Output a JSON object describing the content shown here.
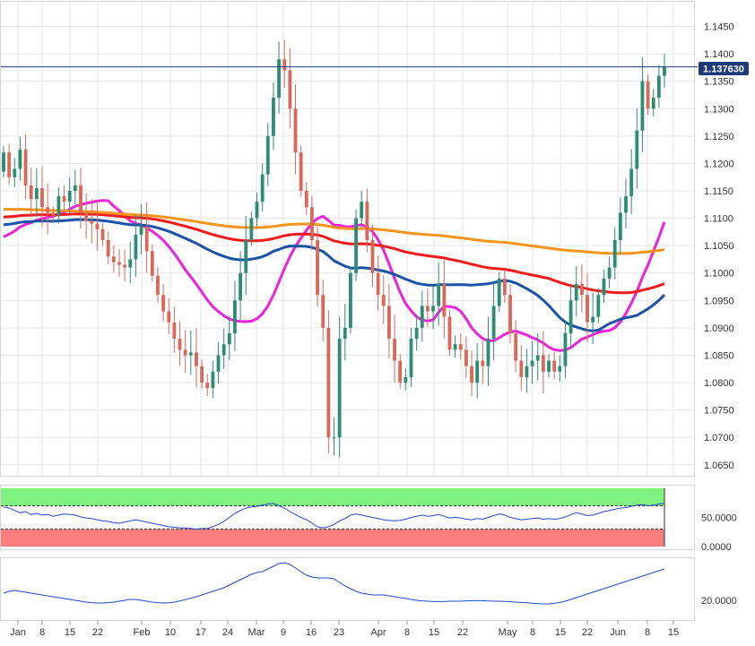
{
  "colors": {
    "up": "#2e8b74",
    "down": "#d9685a",
    "sma_fast": "#ee22dd",
    "sma_mid": "#1a52a6",
    "sma_slow": "#ee1c1c",
    "sma_long": "#f7941d",
    "price_line": "#1f3a7a",
    "overbought": "#7ff27f",
    "oversold": "#fa7d7d",
    "rsi_line": "#2147c9",
    "adx_line": "#2147c9",
    "grid": "#e6e6e6"
  },
  "last_price_label": "1.137630",
  "chart_data": [
    {
      "type": "candlestick",
      "x_labels": [
        "Jan",
        "8",
        "15",
        "22",
        "Feb",
        "10",
        "17",
        "24",
        "Mar",
        "9",
        "16",
        "23",
        "Apr",
        "8",
        "15",
        "22",
        "May",
        "8",
        "15",
        "22",
        "Jun",
        "8",
        "15"
      ],
      "y_ticks": [
        "1.0650",
        "1.0700",
        "1.0750",
        "1.0800",
        "1.0850",
        "1.0900",
        "1.0950",
        "1.1000",
        "1.1050",
        "1.1100",
        "1.1150",
        "1.1200",
        "1.1250",
        "1.1300",
        "1.1350",
        "1.1400",
        "1.1450"
      ],
      "ylim": [
        1.063,
        1.1495
      ],
      "last_price": 1.13763,
      "closes": [
        1.122,
        1.1175,
        1.119,
        1.1225,
        1.116,
        1.1135,
        1.1155,
        1.112,
        1.111,
        1.1105,
        1.114,
        1.113,
        1.115,
        1.116,
        1.111,
        1.1095,
        1.109,
        1.108,
        1.106,
        1.103,
        1.102,
        1.1015,
        1.101,
        1.1025,
        1.107,
        1.1085,
        1.104,
        1.0995,
        1.096,
        1.093,
        1.091,
        1.088,
        1.086,
        1.085,
        1.0855,
        1.083,
        1.08,
        1.079,
        1.082,
        1.085,
        1.087,
        1.089,
        1.095,
        1.1,
        1.106,
        1.11,
        1.113,
        1.118,
        1.125,
        1.132,
        1.139,
        1.137,
        1.13,
        1.122,
        1.115,
        1.112,
        1.106,
        1.096,
        1.09,
        1.07,
        1.07,
        1.088,
        1.09,
        1.1,
        1.11,
        1.113,
        1.106,
        1.1,
        1.096,
        1.094,
        1.088,
        1.084,
        1.08,
        1.081,
        1.088,
        1.09,
        1.094,
        1.093,
        1.094,
        1.098,
        1.092,
        1.086,
        1.087,
        1.086,
        1.083,
        1.08,
        1.084,
        1.083,
        1.088,
        1.094,
        1.099,
        1.096,
        1.089,
        1.084,
        1.081,
        1.083,
        1.084,
        1.085,
        1.082,
        1.084,
        1.082,
        1.083,
        1.089,
        1.095,
        1.098,
        1.096,
        1.091,
        1.092,
        1.096,
        1.099,
        1.101,
        1.106,
        1.111,
        1.114,
        1.119,
        1.126,
        1.135,
        1.13,
        1.132,
        1.136,
        1.1376
      ],
      "series": [
        {
          "name": "",
          "period": 20
        },
        {
          "name": "",
          "period": 50
        },
        {
          "name": "",
          "period": 100
        },
        {
          "name": "",
          "period": 200
        }
      ]
    },
    {
      "type": "line",
      "y_ticks": [
        "0.0000",
        "50.0000"
      ],
      "ylim": [
        0,
        100
      ],
      "overbought": 70,
      "oversold": 30,
      "values": [
        68,
        66,
        62,
        58,
        60,
        55,
        57,
        54,
        55,
        52,
        54,
        56,
        55,
        54,
        51,
        49,
        48,
        46,
        44,
        43,
        41,
        40,
        42,
        44,
        46,
        44,
        42,
        40,
        38,
        36,
        34,
        33,
        32,
        32,
        31,
        30,
        31,
        31,
        34,
        38,
        43,
        50,
        57,
        62,
        66,
        68,
        69,
        71,
        73,
        74,
        70,
        66,
        60,
        55,
        50,
        46,
        40,
        34,
        32,
        34,
        38,
        44,
        48,
        54,
        56,
        54,
        52,
        50,
        48,
        46,
        45,
        44,
        45,
        47,
        50,
        52,
        54,
        52,
        53,
        55,
        52,
        49,
        50,
        49,
        47,
        46,
        48,
        47,
        50,
        53,
        56,
        54,
        50,
        48,
        46,
        47,
        48,
        49,
        47,
        48,
        47,
        48,
        51,
        55,
        58,
        56,
        53,
        54,
        57,
        60,
        62,
        64,
        66,
        67,
        69,
        71,
        72,
        70,
        71,
        73,
        74
      ]
    },
    {
      "type": "line",
      "y_ticks": [
        "20.0000"
      ],
      "ylim": [
        10,
        42
      ],
      "values": [
        24,
        25,
        25.5,
        25,
        24.5,
        24,
        23.5,
        23,
        22.5,
        22,
        21.5,
        21,
        20.5,
        20,
        19.5,
        19,
        18.7,
        18.5,
        18.5,
        18.7,
        19,
        19.5,
        20,
        20.5,
        20.5,
        20,
        19.5,
        19,
        18.7,
        18.5,
        18.6,
        19,
        19.6,
        20.4,
        21.2,
        22,
        23,
        24,
        25,
        26,
        27,
        28.5,
        30,
        31.5,
        33,
        34.5,
        35.5,
        36,
        37.5,
        39,
        40.5,
        41,
        40,
        38,
        36,
        34,
        33,
        32.5,
        32.5,
        32.5,
        32,
        30,
        28,
        26.5,
        25,
        24,
        23.5,
        23,
        23,
        23,
        22.5,
        22,
        21.5,
        21,
        20.5,
        20,
        19.7,
        19.5,
        19.3,
        19.3,
        19.3,
        19.5,
        19.5,
        19.5,
        19.7,
        19.8,
        19.8,
        19.8,
        19.6,
        19.5,
        19.5,
        19.4,
        19.2,
        19,
        18.8,
        18.6,
        18.4,
        18.2,
        18,
        18,
        18.3,
        18.8,
        19.5,
        20.5,
        21.5,
        22.5,
        23.5,
        24.5,
        25.5,
        26.5,
        27.5,
        28.5,
        29.5,
        30.5,
        31.5,
        32.5,
        33.5,
        34.5,
        35.5,
        36.5,
        37.5
      ]
    }
  ]
}
